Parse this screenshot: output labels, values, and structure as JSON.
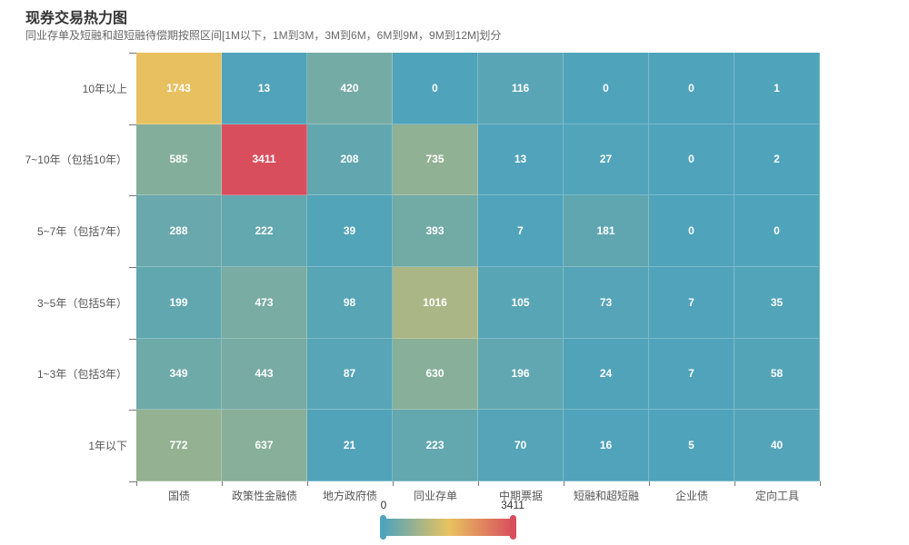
{
  "chart_data": {
    "type": "heatmap",
    "title": "现券交易热力图",
    "subtitle": "同业存单及短融和超短融待偿期按照区间[1M以下，1M到3M，3M到6M，6M到9M，9M到12M]划分",
    "x_categories": [
      "国债",
      "政策性金融债",
      "地方政府债",
      "同业存单",
      "中期票据",
      "短融和超短融",
      "企业债",
      "定向工具"
    ],
    "y_categories": [
      "10年以上",
      "7~10年（包括10年）",
      "5~7年（包括7年）",
      "3~5年（包括5年）",
      "1~3年（包括3年）",
      "1年以下"
    ],
    "rows": [
      [
        1743,
        13,
        420,
        0,
        116,
        0,
        0,
        1
      ],
      [
        585,
        3411,
        208,
        735,
        13,
        27,
        0,
        2
      ],
      [
        288,
        222,
        39,
        393,
        7,
        181,
        0,
        0
      ],
      [
        199,
        473,
        98,
        1016,
        105,
        73,
        7,
        35
      ],
      [
        349,
        443,
        87,
        630,
        196,
        24,
        7,
        58
      ],
      [
        772,
        637,
        21,
        223,
        70,
        16,
        5,
        40
      ]
    ],
    "visual_map": {
      "min": 0,
      "max": 3411,
      "min_label": "0",
      "max_label": "3411",
      "orientation": "horizontal",
      "position": "bottom-center"
    },
    "colors": {
      "low": "#4fa3bb",
      "mid": "#e8c360",
      "high": "#d94e5d",
      "cell_text": "#ffffff",
      "axis_label": "#555555",
      "title": "#333333",
      "subtitle": "#676767"
    },
    "layout_hints": {
      "grid": "no gridlines, faint white cell separators",
      "legend": "continuous gradient bar with drag handles"
    }
  }
}
